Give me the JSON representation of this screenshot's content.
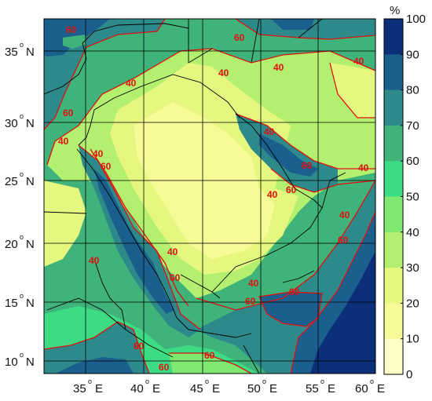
{
  "map": {
    "lat_labels": [
      {
        "value": "35",
        "dir": "N"
      },
      {
        "value": "30",
        "dir": "N"
      },
      {
        "value": "25",
        "dir": "N"
      },
      {
        "value": "20",
        "dir": "N"
      },
      {
        "value": "15",
        "dir": "N"
      },
      {
        "value": "10",
        "dir": "N"
      }
    ],
    "lon_labels": [
      {
        "value": "35",
        "dir": "E"
      },
      {
        "value": "40",
        "dir": "E"
      },
      {
        "value": "45",
        "dir": "E"
      },
      {
        "value": "50",
        "dir": "E"
      },
      {
        "value": "55",
        "dir": "E"
      },
      {
        "value": "60",
        "dir": "E"
      }
    ],
    "degree_symbol": "o",
    "contour_labels": [
      "60",
      "40",
      "60",
      "40",
      "40",
      "40",
      "40",
      "40",
      "60",
      "60",
      "40",
      "40",
      "40",
      "40",
      "40",
      "60",
      "60",
      "60",
      "60",
      "40",
      "40",
      "60",
      "60",
      "60",
      "60",
      "60"
    ],
    "contour_color": "#e01010",
    "border_color": "#000000",
    "water_color": "#1a3a80"
  },
  "colorbar": {
    "unit": "%",
    "ticks": [
      "100",
      "90",
      "80",
      "70",
      "60",
      "50",
      "40",
      "30",
      "20",
      "10",
      "0"
    ],
    "colors": [
      "#0c2f7a",
      "#1a5f8e",
      "#2e8a8a",
      "#3fb37a",
      "#3ddc84",
      "#7fe870",
      "#b4f070",
      "#e6f780",
      "#f6fb98",
      "#fdfdc8"
    ]
  }
}
